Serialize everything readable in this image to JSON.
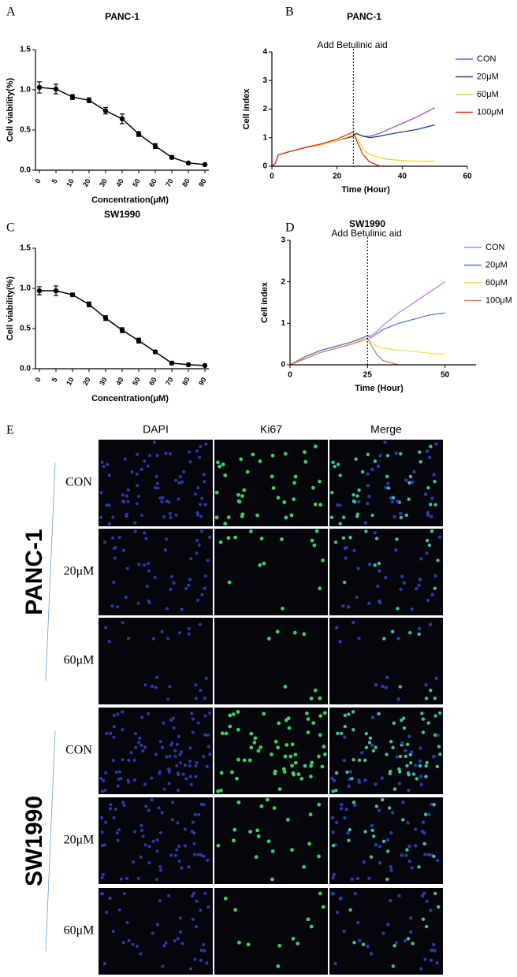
{
  "chart_data": [
    {
      "type": "bar_error",
      "panel": "A",
      "title": "PANC-1",
      "xlabel": "Concentration(μM)",
      "ylabel": "Cell viability(%)",
      "categories": [
        "0",
        "5",
        "10",
        "20",
        "30",
        "40",
        "50",
        "60",
        "70",
        "80",
        "90"
      ],
      "values": [
        1.03,
        1.01,
        0.91,
        0.87,
        0.74,
        0.64,
        0.45,
        0.3,
        0.16,
        0.09,
        0.07
      ],
      "errors": [
        0.07,
        0.06,
        0.03,
        0.03,
        0.04,
        0.06,
        0.03,
        0.03,
        0.02,
        0.01,
        0.01
      ],
      "color": "#000000",
      "ylim": [
        0,
        1.5
      ],
      "yticks": [
        {
          "value": 0,
          "label": "0.0"
        },
        0.5,
        {
          "value": 1,
          "label": "1.0"
        },
        1.5
      ]
    },
    {
      "type": "line",
      "panel": "B",
      "title": "PANC-1",
      "xlabel": "Time (Hour)",
      "ylabel": "Cell index",
      "annotation": {
        "text": "Add Betulinic aid",
        "x": 25
      },
      "x": [
        0,
        1,
        2,
        5,
        10,
        15,
        20,
        25,
        26,
        28,
        30,
        33,
        35,
        40,
        45,
        50
      ],
      "series": [
        {
          "name": "CON",
          "color": "#a050c0",
          "values": [
            0,
            0.1,
            0.4,
            0.5,
            0.65,
            0.75,
            0.9,
            1.05,
            1.15,
            1.05,
            1.05,
            1.15,
            1.25,
            1.5,
            1.75,
            2.05
          ]
        },
        {
          "name": "20μM",
          "color": "#1f3f8f",
          "values": [
            0,
            0.1,
            0.4,
            0.5,
            0.65,
            0.75,
            0.9,
            1.05,
            1.15,
            1.05,
            1.0,
            1.05,
            1.1,
            1.2,
            1.3,
            1.45
          ]
        },
        {
          "name": "60μM",
          "color": "#f0d820",
          "values": [
            0,
            0.1,
            0.4,
            0.5,
            0.65,
            0.75,
            0.9,
            1.1,
            1.0,
            0.6,
            0.4,
            0.3,
            0.25,
            0.2,
            0.18,
            0.17
          ]
        },
        {
          "name": "100μM",
          "color": "#e03020",
          "values": [
            0,
            0.1,
            0.4,
            0.5,
            0.65,
            0.78,
            0.95,
            1.2,
            0.9,
            0.4,
            0.15,
            0.02,
            null,
            null,
            null,
            null
          ]
        }
      ],
      "xlim": [
        0,
        60
      ],
      "xticks": [
        0,
        20,
        40,
        60
      ],
      "ylim": [
        0,
        4
      ],
      "yticks": [
        0,
        1,
        2,
        3,
        4
      ],
      "legend_position": "right"
    },
    {
      "type": "bar_error",
      "panel": "C",
      "title": "SW1990",
      "xlabel": "Concentration(μM)",
      "ylabel": "Cell viability(%)",
      "categories": [
        "0",
        "5",
        "10",
        "20",
        "30",
        "40",
        "50",
        "60",
        "70",
        "80",
        "90"
      ],
      "values": [
        0.97,
        0.97,
        0.92,
        0.8,
        0.63,
        0.48,
        0.35,
        0.21,
        0.07,
        0.05,
        0.04
      ],
      "errors": [
        0.05,
        0.06,
        0.02,
        0.03,
        0.03,
        0.03,
        0.03,
        0.02,
        0.02,
        0.01,
        0.01
      ],
      "color": "#000000",
      "ylim": [
        0,
        1.5
      ],
      "yticks": [
        {
          "value": 0,
          "label": "0.0"
        },
        0.5,
        {
          "value": 1,
          "label": "1.0"
        },
        1.5
      ]
    },
    {
      "type": "line",
      "panel": "D",
      "title": "SW1990",
      "xlabel": "Time (Hour)",
      "ylabel": "Cell index",
      "annotation": {
        "text": "Add Betulinic aid",
        "x": 25
      },
      "x": [
        0,
        5,
        10,
        15,
        20,
        25,
        26,
        28,
        30,
        35,
        40,
        45,
        50
      ],
      "series": [
        {
          "name": "CON",
          "color": "#c080d8",
          "values": [
            0,
            0.2,
            0.35,
            0.45,
            0.55,
            0.7,
            0.7,
            0.8,
            0.95,
            1.25,
            1.5,
            1.75,
            2.0
          ]
        },
        {
          "name": "20μM",
          "color": "#5b7bc0",
          "values": [
            0,
            0.2,
            0.35,
            0.45,
            0.55,
            0.7,
            0.65,
            0.75,
            0.85,
            1.0,
            1.1,
            1.2,
            1.25
          ]
        },
        {
          "name": "60μM",
          "color": "#f0e050",
          "values": [
            0,
            0.15,
            0.3,
            0.4,
            0.5,
            0.6,
            0.55,
            0.45,
            0.4,
            0.35,
            0.32,
            0.28,
            0.25
          ]
        },
        {
          "name": "100μM",
          "color": "#d08060",
          "values": [
            0,
            0.15,
            0.3,
            0.4,
            0.5,
            0.65,
            0.5,
            0.25,
            0.1,
            0.0,
            null,
            null,
            null
          ]
        }
      ],
      "xlim": [
        0,
        60
      ],
      "xticks": [
        0,
        25,
        50
      ],
      "ylim": [
        0,
        3
      ],
      "yticks": [
        0,
        1,
        2,
        3
      ],
      "legend_position": "right"
    }
  ],
  "panel_e": {
    "label": "E",
    "columns": [
      "DAPI",
      "Ki67",
      "Merge"
    ],
    "groups": [
      {
        "name": "PANC-1",
        "rows": [
          "CON",
          "20μM",
          "60μM"
        ]
      },
      {
        "name": "SW1990",
        "rows": [
          "CON",
          "20μM",
          "60μM"
        ]
      }
    ]
  }
}
